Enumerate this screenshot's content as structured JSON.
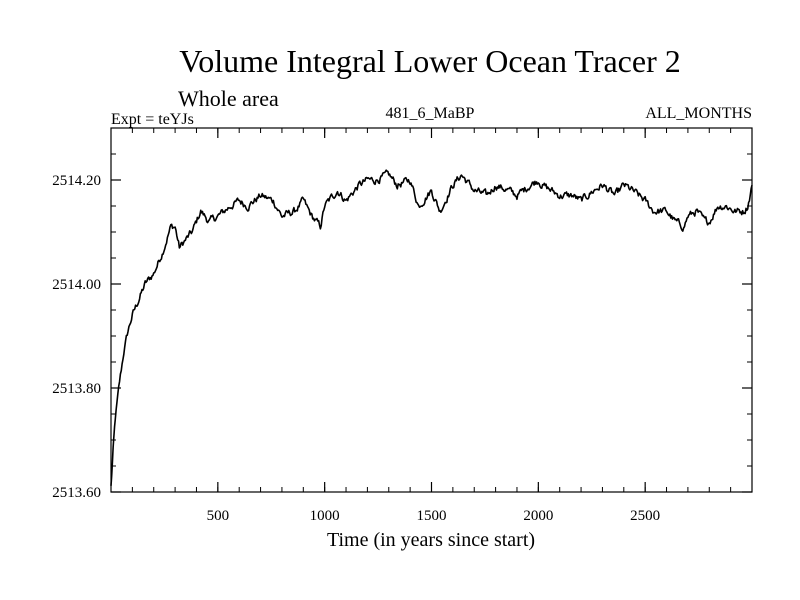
{
  "chart_data": {
    "type": "line",
    "title": "Volume Integral Lower Ocean Tracer 2",
    "subtitle": "Whole area",
    "header_left": "Expt = teYJs",
    "header_center": "481_6_MaBP",
    "header_right": "ALL_MONTHS",
    "xlabel": "Time (in years since start)",
    "ylabel": "",
    "xlim": [
      0,
      3000
    ],
    "ylim": [
      2513.6,
      2514.3
    ],
    "xticks": [
      500,
      1000,
      1500,
      2000,
      2500
    ],
    "xtick_labels": [
      "500",
      "1000",
      "1500",
      "2000",
      "2500"
    ],
    "yticks": [
      2513.6,
      2513.8,
      2514.0,
      2514.2
    ],
    "ytick_labels": [
      "2513.60",
      "2513.80",
      "2514.00",
      "2514.20"
    ],
    "x_minor_step": 100,
    "y_minor_step": 0.05,
    "grid": false,
    "series": [
      {
        "name": "Volume Integral Lower Ocean Tracer 2",
        "color": "#000000",
        "x": [
          0,
          10,
          20,
          40,
          60,
          80,
          100,
          130,
          160,
          200,
          240,
          280,
          300,
          320,
          340,
          380,
          420,
          460,
          500,
          560,
          600,
          640,
          700,
          760,
          800,
          860,
          900,
          940,
          980,
          1000,
          1060,
          1100,
          1160,
          1200,
          1240,
          1300,
          1340,
          1400,
          1440,
          1500,
          1540,
          1600,
          1640,
          1700,
          1760,
          1800,
          1860,
          1900,
          1960,
          2000,
          2020,
          2060,
          2100,
          2160,
          2200,
          2260,
          2300,
          2360,
          2400,
          2440,
          2500,
          2540,
          2600,
          2640,
          2680,
          2700,
          2740,
          2780,
          2800,
          2840,
          2880,
          2920,
          2960,
          2980,
          3000
        ],
        "y": [
          2513.61,
          2513.68,
          2513.74,
          2513.81,
          2513.87,
          2513.91,
          2513.94,
          2513.97,
          2514.0,
          2514.02,
          2514.06,
          2514.11,
          2514.11,
          2514.07,
          2514.08,
          2514.1,
          2514.14,
          2514.12,
          2514.13,
          2514.15,
          2514.16,
          2514.15,
          2514.17,
          2514.16,
          2514.13,
          2514.14,
          2514.16,
          2514.13,
          2514.11,
          2514.15,
          2514.18,
          2514.16,
          2514.19,
          2514.2,
          2514.2,
          2514.21,
          2514.19,
          2514.2,
          2514.15,
          2514.18,
          2514.14,
          2514.19,
          2514.21,
          2514.18,
          2514.17,
          2514.19,
          2514.18,
          2514.17,
          2514.19,
          2514.2,
          2514.19,
          2514.18,
          2514.17,
          2514.17,
          2514.16,
          2514.18,
          2514.19,
          2514.17,
          2514.19,
          2514.18,
          2514.16,
          2514.14,
          2514.14,
          2514.12,
          2514.11,
          2514.13,
          2514.14,
          2514.12,
          2514.12,
          2514.15,
          2514.15,
          2514.14,
          2514.14,
          2514.15,
          2514.19
        ]
      }
    ]
  }
}
